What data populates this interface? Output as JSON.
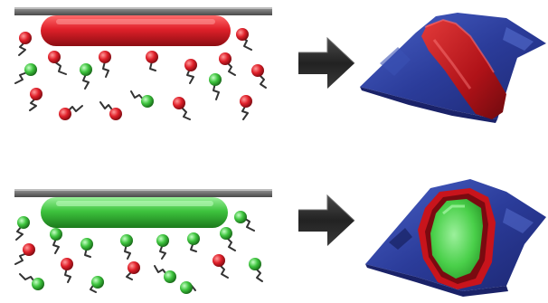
{
  "colors": {
    "red": "#e0202a",
    "green": "#3ec43e",
    "substrate": "#6b6b6b",
    "arrow": "#2c2c2c",
    "surface_blue": "#2e3f9e",
    "surface_red": "#c8141c",
    "surface_green": "#46c846",
    "linker": "#333333"
  },
  "panels": [
    {
      "id": "top",
      "bar_color_key": "red",
      "surface_type": "diagonal-stripe"
    },
    {
      "id": "bottom",
      "bar_color_key": "green",
      "surface_type": "rounded-island"
    }
  ],
  "icons": [
    "arrow-right-icon",
    "sphere-icon",
    "linker-icon"
  ]
}
